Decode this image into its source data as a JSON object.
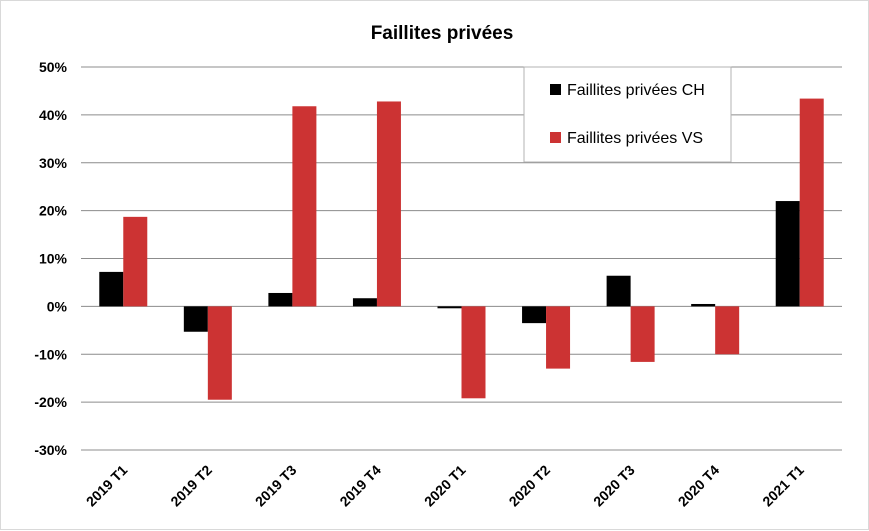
{
  "chart_data": {
    "type": "bar",
    "title": "Faillites privées",
    "xlabel": "",
    "ylabel": "",
    "categories": [
      "2019 T1",
      "2019 T2",
      "2019 T3",
      "2019 T4",
      "2020 T1",
      "2020 T2",
      "2020 T3",
      "2020 T4",
      "2021 T1"
    ],
    "ylim": [
      -30,
      50
    ],
    "yticks": [
      50,
      40,
      30,
      20,
      10,
      0,
      -10,
      -20,
      -30
    ],
    "ytick_labels": [
      "50%",
      "40%",
      "30%",
      "20%",
      "10%",
      "0%",
      "-10%",
      "-20%",
      "-30%"
    ],
    "grid": "horizontal",
    "legend_position": "top-right",
    "series": [
      {
        "name": "Faillites privées CH",
        "color": "#000000",
        "values": [
          7.2,
          -5.3,
          2.8,
          1.7,
          -0.4,
          -3.5,
          6.4,
          0.5,
          22.0
        ]
      },
      {
        "name": "Faillites privées VS",
        "color": "#cc3333",
        "values": [
          18.7,
          -19.5,
          41.8,
          42.8,
          -19.2,
          -13.0,
          -11.6,
          -10.0,
          43.4
        ]
      }
    ]
  }
}
